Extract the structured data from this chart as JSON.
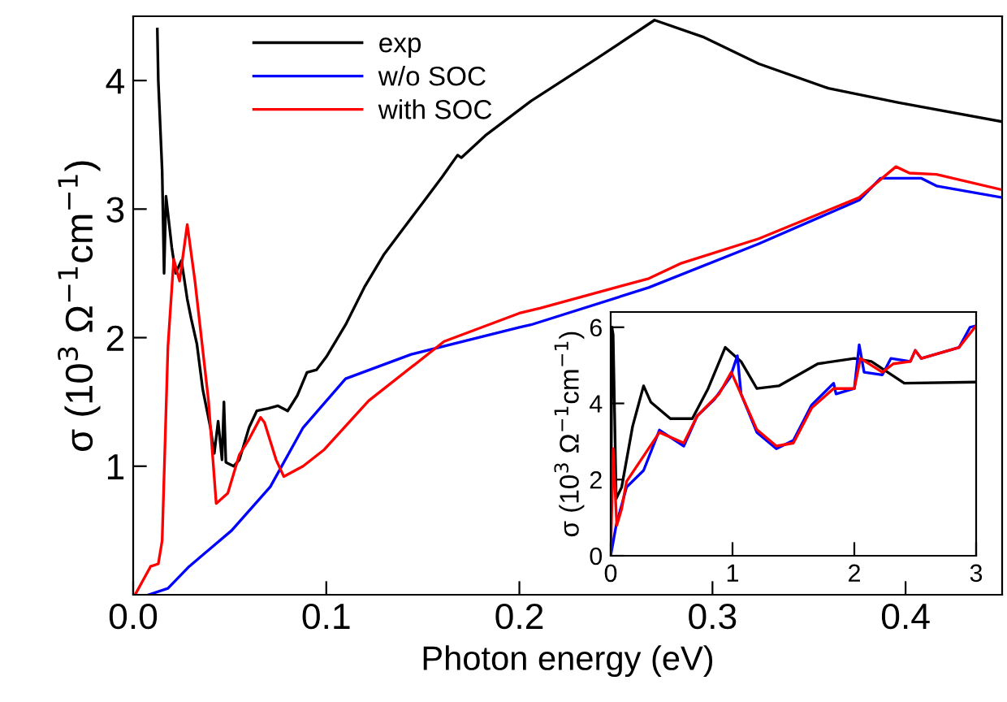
{
  "chart_data": [
    {
      "type": "line",
      "xlabel": "Photon energy (eV)",
      "ylabel": "σ (10$^{3}$ Ω$^{−1}$cm$^{−1}$)",
      "xlim": [
        0,
        0.45
      ],
      "ylim": [
        0,
        4.5
      ],
      "xticks": [
        {
          "value": 0,
          "label": "0.0"
        },
        {
          "value": 0.1,
          "label": "0.1"
        },
        {
          "value": 0.2,
          "label": "0.2"
        },
        {
          "value": 0.3,
          "label": "0.3"
        },
        {
          "value": 0.4,
          "label": "0.4"
        }
      ],
      "yticks": [
        1,
        2,
        3,
        4
      ],
      "legend": "top left",
      "grid": false,
      "series": [
        {
          "name": "exp",
          "color": "#000000",
          "x": [
            0.0125,
            0.013,
            0.015,
            0.016,
            0.017,
            0.02,
            0.022,
            0.025,
            0.028,
            0.03,
            0.033,
            0.036,
            0.04,
            0.042,
            0.044,
            0.046,
            0.047,
            0.048,
            0.052,
            0.055,
            0.06,
            0.064,
            0.07,
            0.075,
            0.08,
            0.085,
            0.09,
            0.095,
            0.1,
            0.11,
            0.12,
            0.13,
            0.14,
            0.15,
            0.16,
            0.168,
            0.17,
            0.183,
            0.206,
            0.24,
            0.27,
            0.295,
            0.324,
            0.36,
            0.396,
            0.45
          ],
          "values": [
            4.4,
            4.0,
            3.3,
            2.5,
            3.1,
            2.7,
            2.5,
            2.6,
            2.3,
            2.15,
            1.95,
            1.6,
            1.3,
            1.1,
            1.35,
            1.05,
            1.5,
            1.03,
            1.0,
            1.05,
            1.3,
            1.43,
            1.45,
            1.47,
            1.43,
            1.55,
            1.73,
            1.75,
            1.85,
            2.1,
            2.4,
            2.65,
            2.85,
            3.05,
            3.25,
            3.42,
            3.4,
            3.58,
            3.84,
            4.17,
            4.47,
            4.34,
            4.13,
            3.94,
            3.83,
            3.68
          ]
        },
        {
          "name": "w/o SOC",
          "color": "#0000ff",
          "x": [
            0.008,
            0.018,
            0.029,
            0.051,
            0.071,
            0.088,
            0.11,
            0.144,
            0.2,
            0.206,
            0.267,
            0.324,
            0.376,
            0.387,
            0.408,
            0.416,
            0.45
          ],
          "values": [
            0,
            0.05,
            0.22,
            0.5,
            0.84,
            1.3,
            1.68,
            1.87,
            2.08,
            2.1,
            2.39,
            2.73,
            3.07,
            3.24,
            3.24,
            3.18,
            3.09
          ]
        },
        {
          "name": "with SOC",
          "color": "#ff0000",
          "x": [
            0.001,
            0.009,
            0.013,
            0.015,
            0.018,
            0.021,
            0.024,
            0.028,
            0.032,
            0.039,
            0.043,
            0.049,
            0.055,
            0.06,
            0.066,
            0.068,
            0.074,
            0.078,
            0.088,
            0.099,
            0.122,
            0.161,
            0.2,
            0.211,
            0.267,
            0.284,
            0.324,
            0.376,
            0.395,
            0.402,
            0.416,
            0.45
          ],
          "values": [
            0,
            0.22,
            0.24,
            0.42,
            1.93,
            2.61,
            2.44,
            2.88,
            2.44,
            1.51,
            0.71,
            0.79,
            1.09,
            1.21,
            1.38,
            1.34,
            1.05,
            0.92,
            1.0,
            1.13,
            1.51,
            1.97,
            2.19,
            2.23,
            2.46,
            2.58,
            2.77,
            3.09,
            3.33,
            3.28,
            3.27,
            3.15
          ]
        }
      ]
    },
    {
      "type": "line",
      "ylabel": "σ (10$^{3}$ Ω$^{−1}$cm$^{−1}$)",
      "xlim": [
        0,
        3
      ],
      "ylim": [
        0,
        6.4
      ],
      "xticks": [
        0,
        1,
        2,
        3
      ],
      "yticks": [
        0,
        2,
        4,
        6
      ],
      "legend": false,
      "grid": false,
      "series": [
        {
          "color": "#000000",
          "x": [
            0,
            0.01,
            0.02,
            0.045,
            0.09,
            0.18,
            0.27,
            0.33,
            0.49,
            0.67,
            0.8,
            0.94,
            1.07,
            1.2,
            1.38,
            1.7,
            2.0,
            2.14,
            2.41,
            2.99
          ],
          "values": [
            0,
            6.0,
            5.8,
            1.5,
            1.8,
            3.4,
            4.46,
            4.03,
            3.6,
            3.6,
            4.39,
            5.47,
            5.1,
            4.39,
            4.46,
            5.04,
            5.18,
            5.1,
            4.53,
            4.56
          ]
        },
        {
          "color": "#0000ff",
          "x": [
            0,
            0.045,
            0.13,
            0.27,
            0.4,
            0.6,
            0.71,
            0.85,
            0.98,
            1.04,
            1.07,
            1.2,
            1.36,
            1.5,
            1.65,
            1.83,
            1.85,
            2.0,
            2.04,
            2.08,
            2.23,
            2.3,
            2.46,
            2.5,
            2.55,
            2.86,
            2.95,
            3.0
          ],
          "values": [
            0,
            0.8,
            1.8,
            2.24,
            3.3,
            2.88,
            3.67,
            4.1,
            4.68,
            5.25,
            4.25,
            3.24,
            2.81,
            3.03,
            3.96,
            4.53,
            4.25,
            4.39,
            5.54,
            4.82,
            4.75,
            5.18,
            5.1,
            5.39,
            5.18,
            5.47,
            6.0,
            6.04
          ]
        },
        {
          "color": "#ff0000",
          "x": [
            0,
            0.02,
            0.05,
            0.09,
            0.13,
            0.4,
            0.6,
            0.71,
            0.89,
            0.99,
            1.05,
            1.2,
            1.36,
            1.5,
            1.65,
            1.83,
            2.0,
            2.05,
            2.23,
            2.32,
            2.46,
            2.5,
            2.55,
            2.86,
            3.0
          ],
          "values": [
            0,
            2.81,
            0.8,
            1.23,
            1.95,
            3.24,
            2.96,
            3.67,
            4.25,
            4.82,
            4.39,
            3.31,
            2.88,
            2.96,
            3.88,
            4.39,
            4.39,
            5.18,
            4.82,
            5.04,
            5.1,
            5.39,
            5.18,
            5.47,
            6.04
          ]
        }
      ]
    }
  ]
}
